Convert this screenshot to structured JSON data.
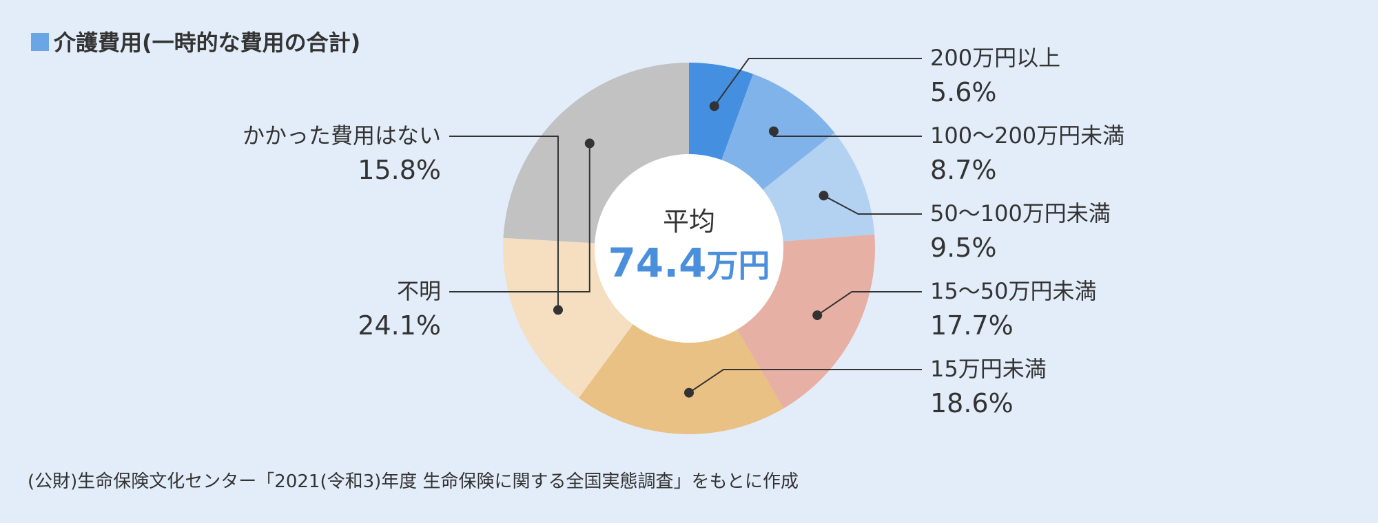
{
  "title": "介護費用(一時的な費用の合計)",
  "center": {
    "label": "平均",
    "value": "74.4",
    "unit": "万円"
  },
  "source": "(公財)生命保険文化センター「2021(令和3)年度 生命保険に関する全国実態調査」をもとに作成",
  "colors": {
    "title_square": "#6aa6e6",
    "center_value": "#4a8fdc"
  },
  "chart_data": {
    "type": "pie",
    "title": "介護費用(一時的な費用の合計)",
    "unit": "%",
    "categories": [
      "200万円以上",
      "100〜200万円未満",
      "50〜100万円未満",
      "15〜50万円未満",
      "15万円未満",
      "かかった費用はない",
      "不明"
    ],
    "values": [
      5.6,
      8.7,
      9.5,
      17.7,
      18.6,
      15.8,
      24.1
    ],
    "labels": [
      "5.6%",
      "8.7%",
      "9.5%",
      "17.7%",
      "18.6%",
      "15.8%",
      "24.1%"
    ],
    "colors": [
      "#448fe0",
      "#7fb3ea",
      "#b3d1f1",
      "#e6b0a4",
      "#e9c184",
      "#f5dfc0",
      "#c2c2c2"
    ],
    "label_side": [
      "right",
      "right",
      "right",
      "right",
      "right",
      "left",
      "left"
    ]
  }
}
